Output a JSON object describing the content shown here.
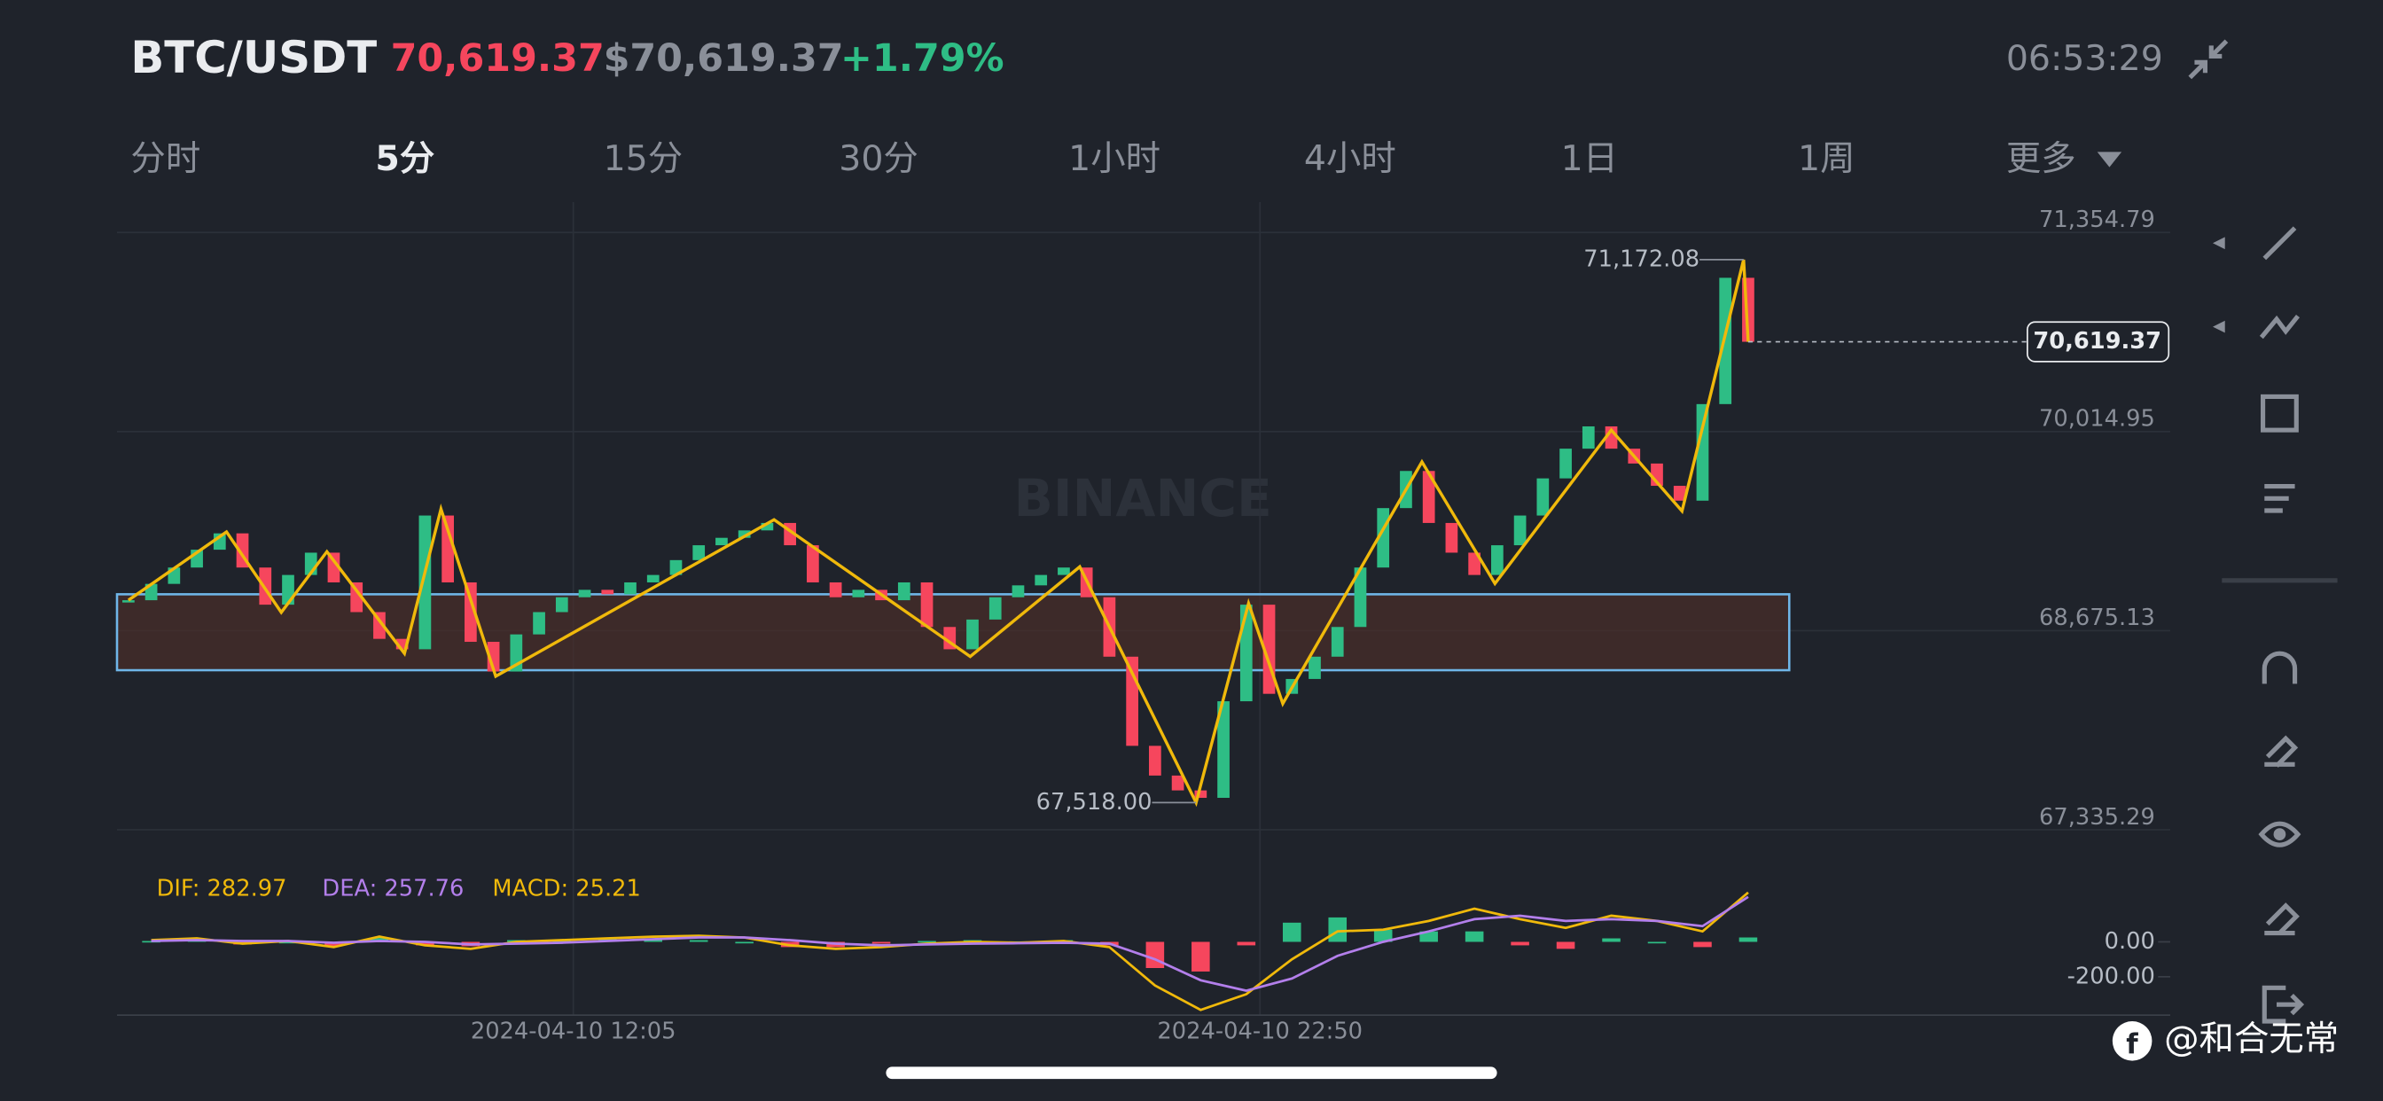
{
  "header": {
    "symbol": "BTC/USDT",
    "price": "70,619.37",
    "price_usd": "$70,619.37",
    "change": "+1.79%",
    "time": "06:53:29"
  },
  "tabs": [
    "分时",
    "5分",
    "15分",
    "30分",
    "1小时",
    "4小时",
    "1日",
    "1周",
    "更多"
  ],
  "selected_tab": 1,
  "chart_data": [
    {
      "type": "candlestick",
      "closes": [
        68880,
        68990,
        69100,
        69220,
        69330,
        69100,
        68850,
        69050,
        69200,
        69000,
        68800,
        68620,
        68550,
        69450,
        69000,
        68600,
        68400,
        68650,
        68800,
        68900,
        68950,
        68920,
        69000,
        69050,
        69150,
        69250,
        69300,
        69350,
        69400,
        69250,
        69000,
        68900,
        68950,
        68880,
        69000,
        68700,
        68550,
        68750,
        68900,
        68980,
        69050,
        69100,
        68900,
        68500,
        67900,
        67700,
        67600,
        67550,
        68200,
        68850,
        68250,
        68350,
        68500,
        68700,
        69100,
        69500,
        69750,
        69400,
        69200,
        69050,
        69250,
        69450,
        69700,
        69900,
        70050,
        69900,
        69800,
        69650,
        69550,
        70200,
        71050,
        70619.37
      ],
      "up_color": "#2ebd85",
      "down_color": "#f6465d",
      "ylim": [
        67335.29,
        71354.79
      ],
      "yticks": [
        {
          "value": 71354.79,
          "label": "71,354.79"
        },
        {
          "value": 70014.95,
          "label": "70,014.95"
        },
        {
          "value": 68675.13,
          "label": "68,675.13"
        },
        {
          "value": 67335.29,
          "label": "67,335.29"
        }
      ],
      "xlim": [
        -0.5,
        89.5
      ],
      "xticks": [
        {
          "value": 19.5,
          "label": "2024-04-10 12:05"
        },
        {
          "value": 49.6,
          "label": "2024-04-10 22:50"
        }
      ],
      "zigzag": {
        "color": "#f0b90b",
        "x": [
          0,
          4.3,
          6.7,
          8.7,
          12.1,
          13.7,
          16.1,
          28.3,
          36.9,
          41.7,
          46.8,
          49.1,
          50.6,
          56.7,
          59.9,
          65,
          68.1,
          70.8,
          71
        ],
        "values": [
          68880,
          69340,
          68798,
          69207,
          68522,
          69494,
          68368,
          69422,
          68501,
          69105,
          67518,
          68859,
          68184,
          69811,
          68992,
          70025,
          69480,
          71172.08,
          70619.37
        ]
      },
      "zone": {
        "xlim": [
          -0.5,
          72.8
        ],
        "ylim": [
          68409,
          68920
        ],
        "color": "#6fb6e8"
      },
      "high_label": {
        "value": 71172.08,
        "label": "71,172.08",
        "x": 70.8
      },
      "low_label": {
        "value": 67518.0,
        "label": "67,518.00",
        "x": 46.8
      },
      "last_price": {
        "value": 70619.37,
        "label": "70,619.37"
      },
      "watermark": "BINANCE"
    },
    {
      "type": "macd",
      "legend": [
        {
          "text": "DIF: 282.97",
          "color": "#f0b90b"
        },
        {
          "text": "DEA: 257.76",
          "color": "#b37feb"
        },
        {
          "text": "MACD: 25.21",
          "color": "#f0b90b"
        }
      ],
      "dif": [
        10,
        20,
        -10,
        5,
        -30,
        30,
        -20,
        -40,
        0,
        10,
        20,
        30,
        35,
        25,
        -20,
        -40,
        -30,
        -10,
        0,
        -5,
        5,
        -30,
        -250,
        -390,
        -300,
        -100,
        60,
        70,
        120,
        190,
        130,
        80,
        150,
        120,
        60,
        282.97
      ],
      "dea": [
        5,
        10,
        5,
        5,
        -5,
        5,
        0,
        -15,
        -10,
        -5,
        5,
        15,
        25,
        25,
        10,
        -10,
        -20,
        -15,
        -10,
        -8,
        -5,
        -10,
        -100,
        -220,
        -280,
        -210,
        -80,
        0,
        60,
        130,
        150,
        120,
        130,
        120,
        90,
        257.76
      ],
      "macd": [
        5,
        10,
        -15,
        0,
        -25,
        25,
        -20,
        -25,
        10,
        15,
        15,
        15,
        10,
        0,
        -30,
        -30,
        -10,
        5,
        10,
        3,
        10,
        -20,
        -150,
        -170,
        -20,
        110,
        140,
        70,
        60,
        60,
        -20,
        -40,
        20,
        0,
        -30,
        25.21
      ],
      "ylim": [
        -420,
        390
      ],
      "yticks": [
        {
          "value": 0,
          "label": "0.00"
        },
        {
          "value": -200,
          "label": "-200.00"
        }
      ]
    }
  ],
  "footer": "@和合无常"
}
